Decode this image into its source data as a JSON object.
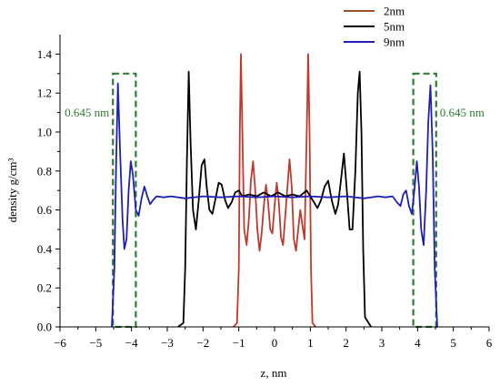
{
  "chart_data": {
    "type": "line",
    "xlabel": "z, nm",
    "ylabel": "density g/cm³",
    "xlim": [
      -6,
      6
    ],
    "ylim": [
      0,
      1.5
    ],
    "x_ticks": [
      "-6",
      "-5",
      "-4",
      "-3",
      "-2",
      "-1",
      "0",
      "1",
      "2",
      "3",
      "4",
      "5",
      "6"
    ],
    "y_ticks": [
      "0.0",
      "0.2",
      "0.4",
      "0.6",
      "0.8",
      "1.0",
      "1.2",
      "1.4"
    ],
    "grid": false,
    "legend_position": "top-right",
    "series": [
      {
        "name": "2nm",
        "color": "#c0392b",
        "legend_color": "#a0522d",
        "points": [
          [
            -1.15,
            0.0
          ],
          [
            -1.05,
            0.02
          ],
          [
            -1.0,
            0.3
          ],
          [
            -0.97,
            1.0
          ],
          [
            -0.94,
            1.4
          ],
          [
            -0.9,
            1.0
          ],
          [
            -0.85,
            0.5
          ],
          [
            -0.78,
            0.42
          ],
          [
            -0.72,
            0.55
          ],
          [
            -0.66,
            0.75
          ],
          [
            -0.6,
            0.85
          ],
          [
            -0.54,
            0.7
          ],
          [
            -0.48,
            0.5
          ],
          [
            -0.42,
            0.39
          ],
          [
            -0.36,
            0.48
          ],
          [
            -0.3,
            0.62
          ],
          [
            -0.24,
            0.73
          ],
          [
            -0.18,
            0.64
          ],
          [
            -0.12,
            0.5
          ],
          [
            -0.06,
            0.48
          ],
          [
            0.0,
            0.62
          ],
          [
            0.06,
            0.74
          ],
          [
            0.12,
            0.64
          ],
          [
            0.18,
            0.46
          ],
          [
            0.24,
            0.42
          ],
          [
            0.3,
            0.57
          ],
          [
            0.36,
            0.72
          ],
          [
            0.42,
            0.86
          ],
          [
            0.48,
            0.72
          ],
          [
            0.54,
            0.45
          ],
          [
            0.6,
            0.39
          ],
          [
            0.66,
            0.5
          ],
          [
            0.72,
            0.6
          ],
          [
            0.78,
            0.52
          ],
          [
            0.84,
            0.45
          ],
          [
            0.9,
            1.0
          ],
          [
            0.94,
            1.4
          ],
          [
            0.98,
            1.0
          ],
          [
            1.02,
            0.3
          ],
          [
            1.06,
            0.02
          ],
          [
            1.15,
            0.0
          ]
        ]
      },
      {
        "name": "5nm",
        "color": "#000000",
        "points": [
          [
            -2.7,
            0.0
          ],
          [
            -2.55,
            0.02
          ],
          [
            -2.5,
            0.3
          ],
          [
            -2.45,
            0.85
          ],
          [
            -2.4,
            1.31
          ],
          [
            -2.35,
            0.95
          ],
          [
            -2.28,
            0.6
          ],
          [
            -2.2,
            0.5
          ],
          [
            -2.12,
            0.65
          ],
          [
            -2.04,
            0.83
          ],
          [
            -1.96,
            0.86
          ],
          [
            -1.9,
            0.72
          ],
          [
            -1.82,
            0.6
          ],
          [
            -1.74,
            0.58
          ],
          [
            -1.66,
            0.65
          ],
          [
            -1.56,
            0.74
          ],
          [
            -1.48,
            0.73
          ],
          [
            -1.38,
            0.65
          ],
          [
            -1.3,
            0.61
          ],
          [
            -1.2,
            0.64
          ],
          [
            -1.1,
            0.69
          ],
          [
            -1.0,
            0.7
          ],
          [
            -0.9,
            0.67
          ],
          [
            -0.7,
            0.68
          ],
          [
            -0.5,
            0.67
          ],
          [
            -0.3,
            0.69
          ],
          [
            -0.1,
            0.67
          ],
          [
            0.1,
            0.69
          ],
          [
            0.3,
            0.67
          ],
          [
            0.5,
            0.68
          ],
          [
            0.7,
            0.67
          ],
          [
            0.9,
            0.7
          ],
          [
            1.0,
            0.67
          ],
          [
            1.1,
            0.64
          ],
          [
            1.2,
            0.61
          ],
          [
            1.3,
            0.65
          ],
          [
            1.4,
            0.72
          ],
          [
            1.5,
            0.75
          ],
          [
            1.6,
            0.65
          ],
          [
            1.7,
            0.58
          ],
          [
            1.78,
            0.63
          ],
          [
            1.86,
            0.76
          ],
          [
            1.94,
            0.89
          ],
          [
            2.02,
            0.7
          ],
          [
            2.1,
            0.5
          ],
          [
            2.18,
            0.5
          ],
          [
            2.26,
            0.8
          ],
          [
            2.33,
            1.2
          ],
          [
            2.38,
            1.31
          ],
          [
            2.43,
            1.0
          ],
          [
            2.48,
            0.4
          ],
          [
            2.53,
            0.05
          ],
          [
            2.7,
            0.0
          ]
        ]
      },
      {
        "name": "9nm",
        "color": "#1f1fb4",
        "points": [
          [
            -4.55,
            0.0
          ],
          [
            -4.48,
            0.3
          ],
          [
            -4.43,
            0.85
          ],
          [
            -4.38,
            1.25
          ],
          [
            -4.32,
            0.9
          ],
          [
            -4.25,
            0.55
          ],
          [
            -4.2,
            0.4
          ],
          [
            -4.14,
            0.45
          ],
          [
            -4.08,
            0.7
          ],
          [
            -4.02,
            0.85
          ],
          [
            -3.96,
            0.78
          ],
          [
            -3.88,
            0.6
          ],
          [
            -3.8,
            0.57
          ],
          [
            -3.72,
            0.66
          ],
          [
            -3.64,
            0.72
          ],
          [
            -3.56,
            0.67
          ],
          [
            -3.48,
            0.63
          ],
          [
            -3.4,
            0.65
          ],
          [
            -3.3,
            0.67
          ],
          [
            -3.1,
            0.665
          ],
          [
            -2.9,
            0.67
          ],
          [
            -2.5,
            0.66
          ],
          [
            -2.0,
            0.67
          ],
          [
            -1.5,
            0.665
          ],
          [
            -1.0,
            0.67
          ],
          [
            -0.5,
            0.665
          ],
          [
            0.0,
            0.67
          ],
          [
            0.5,
            0.665
          ],
          [
            1.0,
            0.67
          ],
          [
            1.5,
            0.665
          ],
          [
            2.0,
            0.67
          ],
          [
            2.5,
            0.66
          ],
          [
            2.9,
            0.67
          ],
          [
            3.1,
            0.665
          ],
          [
            3.3,
            0.67
          ],
          [
            3.42,
            0.64
          ],
          [
            3.52,
            0.62
          ],
          [
            3.6,
            0.68
          ],
          [
            3.68,
            0.7
          ],
          [
            3.76,
            0.62
          ],
          [
            3.84,
            0.58
          ],
          [
            3.92,
            0.72
          ],
          [
            3.98,
            0.85
          ],
          [
            4.04,
            0.72
          ],
          [
            4.1,
            0.5
          ],
          [
            4.17,
            0.42
          ],
          [
            4.24,
            0.7
          ],
          [
            4.3,
            1.05
          ],
          [
            4.36,
            1.24
          ],
          [
            4.42,
            0.9
          ],
          [
            4.48,
            0.3
          ],
          [
            4.55,
            0.0
          ]
        ]
      }
    ],
    "annotations": [
      {
        "label": "0.645 nm",
        "box_x": [
          -4.52,
          -3.88
        ],
        "box_y": [
          0,
          1.3
        ],
        "color": "#2e7d32"
      },
      {
        "label": "0.645 nm",
        "box_x": [
          3.88,
          4.52
        ],
        "box_y": [
          0,
          1.3
        ],
        "color": "#2e7d32"
      }
    ]
  }
}
